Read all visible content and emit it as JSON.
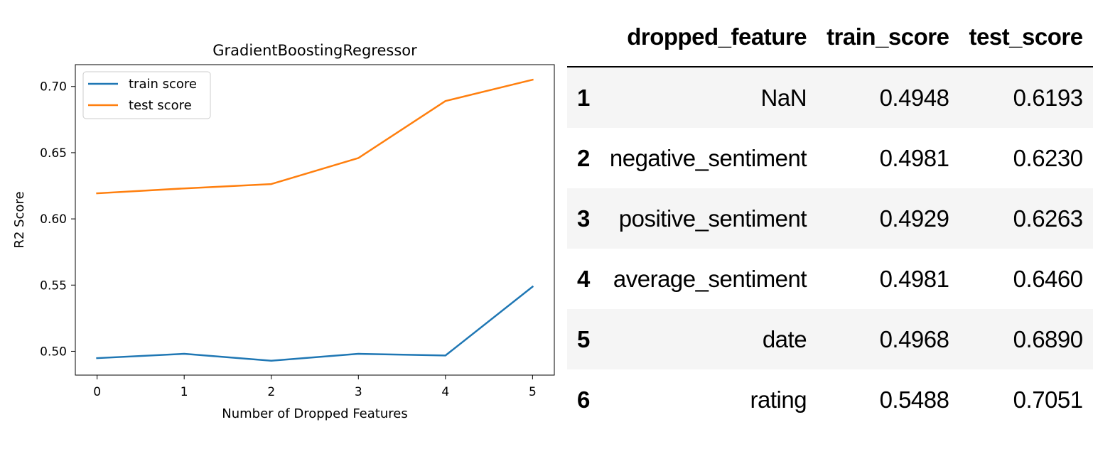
{
  "chart_data": {
    "type": "line",
    "title": "GradientBoostingRegressor",
    "xlabel": "Number of Dropped Features",
    "ylabel": "R2 Score",
    "x": [
      0,
      1,
      2,
      3,
      4,
      5
    ],
    "xticks": [
      "0",
      "1",
      "2",
      "3",
      "4",
      "5"
    ],
    "yticks": [
      "0.50",
      "0.55",
      "0.60",
      "0.65",
      "0.70"
    ],
    "xlim": [
      -0.25,
      5.25
    ],
    "ylim": [
      0.482,
      0.7165
    ],
    "legend_position": "top-left",
    "series": [
      {
        "name": "train score",
        "color": "#1f77b4",
        "values": [
          0.4948,
          0.4981,
          0.4929,
          0.4981,
          0.4968,
          0.5488
        ]
      },
      {
        "name": "test score",
        "color": "#ff7f0e",
        "values": [
          0.6193,
          0.623,
          0.6263,
          0.646,
          0.689,
          0.7051
        ]
      }
    ]
  },
  "table": {
    "columns": [
      "",
      "dropped_feature",
      "train_score",
      "test_score"
    ],
    "rows": [
      [
        "1",
        "NaN",
        "0.4948",
        "0.6193"
      ],
      [
        "2",
        "negative_sentiment",
        "0.4981",
        "0.6230"
      ],
      [
        "3",
        "positive_sentiment",
        "0.4929",
        "0.6263"
      ],
      [
        "4",
        "average_sentiment",
        "0.4981",
        "0.6460"
      ],
      [
        "5",
        "date",
        "0.4968",
        "0.6890"
      ],
      [
        "6",
        "rating",
        "0.5488",
        "0.7051"
      ]
    ]
  }
}
